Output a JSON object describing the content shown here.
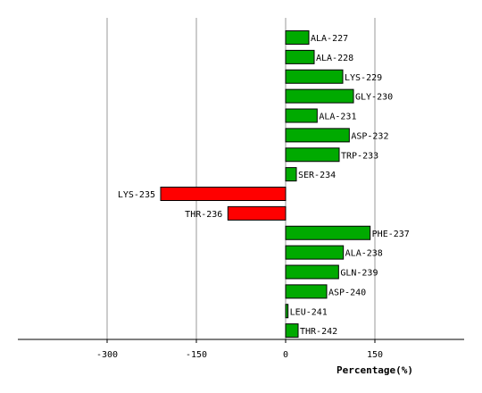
{
  "chart_data": {
    "type": "bar",
    "orientation": "horizontal",
    "categories": [
      "ALA-227",
      "ALA-228",
      "LYS-229",
      "GLY-230",
      "ALA-231",
      "ASP-232",
      "TRP-233",
      "SER-234",
      "LYS-235",
      "THR-236",
      "PHE-237",
      "ALA-238",
      "GLN-239",
      "ASP-240",
      "LEU-241",
      "THR-242"
    ],
    "values": [
      39,
      48,
      96,
      114,
      53,
      107,
      90,
      18,
      -210,
      -97,
      142,
      97,
      89,
      69,
      4,
      21
    ],
    "xlabel": "Percentage(%)",
    "ylabel": "",
    "xlim": [
      -450,
      300
    ],
    "xticks": [
      -300,
      -150,
      0,
      150
    ],
    "xtick_labels": [
      "-300",
      "-150",
      "0",
      "150"
    ],
    "grid": true,
    "colors": {
      "positive": "#00aa00",
      "negative": "#ff0000",
      "border": "#000000",
      "grid": "#999999"
    }
  }
}
